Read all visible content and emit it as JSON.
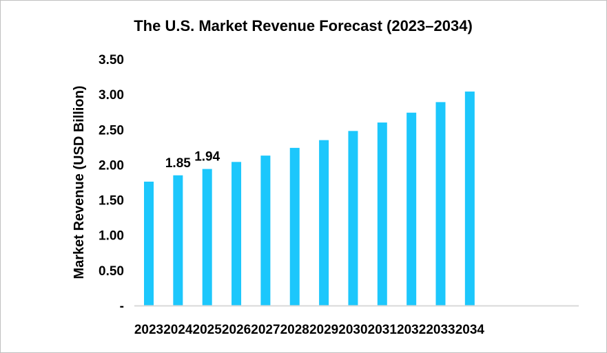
{
  "chart_data": {
    "type": "bar",
    "title": "The U.S. Market Revenue Forecast (2023–2034)",
    "xlabel": "",
    "ylabel": "Market Revenue (USD Billion)",
    "categories": [
      "2023",
      "2024",
      "2025",
      "2026",
      "2027",
      "2028",
      "2029",
      "2030",
      "2031",
      "2032",
      "2033",
      "2034"
    ],
    "values": [
      1.76,
      1.85,
      1.94,
      2.04,
      2.13,
      2.24,
      2.35,
      2.48,
      2.6,
      2.74,
      2.89,
      3.04
    ],
    "data_labels": [
      {
        "category": "2024",
        "text": "1.85"
      },
      {
        "category": "2025",
        "text": "1.94"
      }
    ],
    "ylim": [
      0,
      3.5
    ],
    "yticks": [
      0,
      0.5,
      1.0,
      1.5,
      2.0,
      2.5,
      3.0,
      3.5
    ],
    "ytick_labels": [
      "-",
      "0.50",
      "1.00",
      "1.50",
      "2.00",
      "2.50",
      "3.00",
      "3.50"
    ],
    "grid": false,
    "legend": "none",
    "bar_color": "#1CC7FC",
    "axis_color": "#D9D9D9",
    "border_color": "#BFBFBF"
  }
}
